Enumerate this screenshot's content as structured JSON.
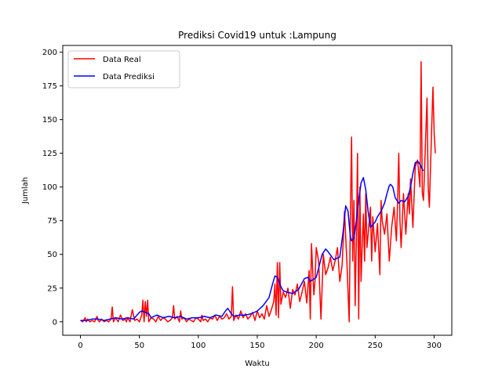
{
  "chart_data": {
    "type": "line",
    "title": "Prediksi Covid19 untuk :Lampung",
    "xlabel": "Waktu",
    "ylabel": "Jumlah",
    "xlim": [
      -15,
      315
    ],
    "ylim": [
      -10,
      205
    ],
    "xticks": [
      0,
      50,
      100,
      150,
      200,
      250,
      300
    ],
    "yticks": [
      0,
      25,
      50,
      75,
      100,
      125,
      150,
      175,
      200
    ],
    "grid": false,
    "legend_position": "top-left",
    "series": [
      {
        "name": "Data Real",
        "color": "#ff0000",
        "x": [
          0,
          2,
          4,
          5,
          6,
          8,
          10,
          12,
          14,
          15,
          16,
          18,
          20,
          22,
          24,
          26,
          27,
          28,
          30,
          32,
          34,
          36,
          38,
          39,
          40,
          42,
          44,
          46,
          48,
          50,
          52,
          53,
          54,
          55,
          56,
          57,
          58,
          60,
          62,
          64,
          66,
          68,
          70,
          72,
          74,
          76,
          78,
          79,
          80,
          82,
          84,
          85,
          86,
          88,
          90,
          92,
          94,
          96,
          98,
          100,
          102,
          103,
          104,
          106,
          108,
          110,
          112,
          114,
          116,
          118,
          120,
          122,
          124,
          126,
          128,
          129,
          130,
          132,
          134,
          136,
          138,
          140,
          142,
          144,
          146,
          148,
          150,
          152,
          154,
          156,
          158,
          160,
          162,
          164,
          165,
          166,
          167,
          168,
          169,
          170,
          172,
          174,
          176,
          178,
          180,
          182,
          184,
          186,
          188,
          190,
          192,
          194,
          195,
          196,
          198,
          199,
          200,
          202,
          204,
          206,
          208,
          210,
          212,
          214,
          216,
          218,
          220,
          222,
          224,
          226,
          228,
          229,
          230,
          231,
          232,
          233,
          234,
          235,
          236,
          237,
          238,
          239,
          240,
          241,
          242,
          243,
          244,
          246,
          247,
          248,
          250,
          252,
          254,
          255,
          256,
          258,
          260,
          262,
          264,
          266,
          268,
          269,
          270,
          271,
          272,
          274,
          276,
          278,
          279,
          280,
          282,
          284,
          286,
          288,
          289,
          290,
          291,
          292,
          294,
          295,
          296,
          298,
          299,
          300,
          301
        ],
        "values": [
          1,
          0,
          3,
          0,
          2,
          0,
          1,
          0,
          4,
          1,
          0,
          2,
          0,
          1,
          0,
          2,
          11,
          0,
          3,
          0,
          5,
          1,
          2,
          0,
          3,
          0,
          9,
          1,
          2,
          0,
          5,
          16,
          0,
          15,
          4,
          16,
          0,
          3,
          2,
          0,
          4,
          1,
          3,
          2,
          0,
          1,
          3,
          12,
          2,
          4,
          0,
          8,
          2,
          3,
          0,
          2,
          1,
          0,
          3,
          2,
          0,
          5,
          1,
          2,
          0,
          3,
          2,
          5,
          1,
          4,
          2,
          3,
          6,
          2,
          4,
          26,
          1,
          5,
          2,
          8,
          3,
          6,
          2,
          4,
          7,
          1,
          8,
          3,
          6,
          2,
          12,
          4,
          9,
          15,
          28,
          5,
          44,
          3,
          44,
          13,
          22,
          18,
          25,
          10,
          24,
          20,
          28,
          15,
          22,
          30,
          14,
          38,
          2,
          58,
          20,
          30,
          55,
          45,
          2,
          50,
          35,
          40,
          48,
          38,
          45,
          55,
          30,
          42,
          82,
          45,
          0,
          80,
          137,
          45,
          90,
          12,
          60,
          125,
          2,
          100,
          30,
          56,
          80,
          45,
          95,
          55,
          65,
          85,
          45,
          78,
          52,
          73,
          35,
          90,
          75,
          65,
          80,
          45,
          70,
          85,
          60,
          90,
          125,
          75,
          55,
          95,
          65,
          95,
          80,
          106,
          70,
          115,
          120,
          100,
          193,
          96,
          90,
          115,
          166,
          100,
          85,
          145,
          174,
          140,
          125
        ]
      },
      {
        "name": "Data Prediksi",
        "color": "#0000ff",
        "x": [
          0,
          5,
          10,
          15,
          20,
          25,
          30,
          35,
          40,
          45,
          48,
          50,
          52,
          55,
          58,
          60,
          65,
          70,
          75,
          80,
          85,
          90,
          95,
          100,
          105,
          110,
          115,
          120,
          123,
          125,
          128,
          130,
          135,
          140,
          145,
          150,
          155,
          160,
          163,
          165,
          167,
          170,
          172,
          175,
          180,
          185,
          190,
          193,
          195,
          200,
          205,
          208,
          210,
          215,
          220,
          223,
          225,
          227,
          229,
          230,
          232,
          234,
          236,
          238,
          240,
          242,
          244,
          246,
          248,
          250,
          252,
          255,
          258,
          260,
          262,
          263,
          265,
          267,
          270,
          272,
          275,
          278,
          280,
          282,
          284,
          286,
          288,
          290,
          291
        ],
        "values": [
          1,
          1,
          2,
          2,
          1,
          2,
          3,
          2,
          3,
          2,
          5,
          7,
          8,
          7,
          6,
          3,
          5,
          3,
          4,
          3,
          4,
          2,
          3,
          3,
          4,
          3,
          5,
          4,
          8,
          10,
          6,
          4,
          5,
          5,
          6,
          8,
          12,
          18,
          28,
          34,
          33,
          26,
          23,
          22,
          21,
          24,
          32,
          33,
          30,
          33,
          50,
          54,
          52,
          46,
          48,
          68,
          86,
          82,
          63,
          60,
          62,
          75,
          90,
          103,
          107,
          98,
          82,
          70,
          72,
          74,
          78,
          82,
          88,
          95,
          101,
          102,
          100,
          92,
          88,
          90,
          89,
          93,
          100,
          110,
          118,
          119,
          117,
          113,
          112
        ]
      }
    ]
  }
}
